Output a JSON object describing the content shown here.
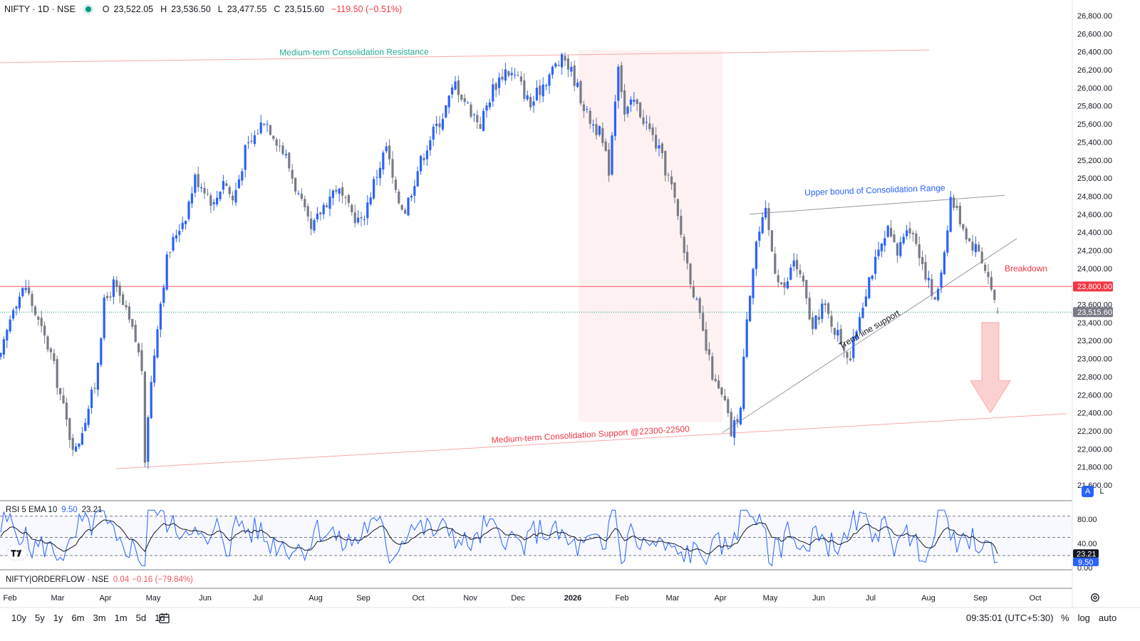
{
  "header": {
    "symbol": "NIFTY · 1D · NSE",
    "open_label": "O",
    "open": "23,522.05",
    "high_label": "H",
    "high": "23,536.50",
    "low_label": "L",
    "low": "23,477.55",
    "close_label": "C",
    "close": "23,515.60",
    "change": "−119.50 (−0.51%)",
    "status_color": "#089981"
  },
  "price_axis": {
    "ticks": [
      "26,800.00",
      "26,600.00",
      "26,400.00",
      "26,200.00",
      "26,000.00",
      "25,800.00",
      "25,600.00",
      "25,400.00",
      "25,200.00",
      "25,000.00",
      "24,800.00",
      "24,600.00",
      "24,400.00",
      "24,200.00",
      "24,000.00",
      "23,800.00",
      "23,600.00",
      "23,400.00",
      "23,200.00",
      "23,000.00",
      "22,800.00",
      "22,600.00",
      "22,400.00",
      "22,200.00",
      "22,000.00",
      "21,800.00",
      "21,600.00"
    ],
    "tick_values": [
      26800,
      26600,
      26400,
      26200,
      26000,
      25800,
      25600,
      25400,
      25200,
      25000,
      24800,
      24600,
      24400,
      24200,
      24000,
      23800,
      23600,
      23400,
      23200,
      23000,
      22800,
      22600,
      22400,
      22200,
      22000,
      21800,
      21600
    ],
    "ylim": [
      21450,
      26950
    ],
    "last_price_label": "23,515.60",
    "level_label": "23,800.00",
    "scale_mode_a": "A",
    "scale_mode_l": "L"
  },
  "chart_data": {
    "type": "candlestick",
    "ylim": [
      21450,
      26950
    ],
    "last_price": 23515.6,
    "up_color": "#2962ff",
    "down_color": "#787b86",
    "price_path": [
      [
        0,
        23000
      ],
      [
        4,
        23600
      ],
      [
        8,
        23800
      ],
      [
        12,
        23400
      ],
      [
        16,
        23050
      ],
      [
        19,
        22600
      ],
      [
        22,
        22150
      ],
      [
        24,
        21980
      ],
      [
        27,
        22350
      ],
      [
        30,
        22700
      ],
      [
        33,
        23600
      ],
      [
        36,
        23820
      ],
      [
        40,
        23500
      ],
      [
        43,
        23200
      ],
      [
        45,
        22900
      ],
      [
        46,
        21770
      ],
      [
        47,
        22400
      ],
      [
        50,
        23400
      ],
      [
        53,
        24100
      ],
      [
        56,
        24400
      ],
      [
        59,
        24600
      ],
      [
        62,
        25000
      ],
      [
        65,
        24900
      ],
      [
        68,
        24700
      ],
      [
        71,
        25000
      ],
      [
        74,
        24750
      ],
      [
        76,
        25000
      ],
      [
        78,
        25300
      ],
      [
        80,
        25400
      ],
      [
        84,
        25660
      ],
      [
        87,
        25500
      ],
      [
        91,
        25230
      ],
      [
        95,
        24800
      ],
      [
        99,
        24400
      ],
      [
        103,
        24700
      ],
      [
        107,
        24900
      ],
      [
        111,
        24650
      ],
      [
        115,
        24500
      ],
      [
        119,
        24950
      ],
      [
        123,
        25350
      ],
      [
        126,
        24800
      ],
      [
        129,
        24650
      ],
      [
        133,
        25100
      ],
      [
        137,
        25450
      ],
      [
        141,
        25700
      ],
      [
        145,
        26050
      ],
      [
        149,
        25800
      ],
      [
        153,
        25600
      ],
      [
        157,
        26000
      ],
      [
        161,
        26200
      ],
      [
        165,
        26100
      ],
      [
        169,
        25800
      ],
      [
        173,
        26050
      ],
      [
        177,
        26250
      ],
      [
        180,
        26320
      ],
      [
        183,
        26100
      ],
      [
        187,
        25700
      ],
      [
        191,
        25500
      ],
      [
        194,
        25100
      ],
      [
        197,
        26300
      ],
      [
        199,
        25700
      ],
      [
        202,
        25850
      ],
      [
        206,
        25600
      ],
      [
        210,
        25300
      ],
      [
        214,
        24900
      ],
      [
        218,
        24200
      ],
      [
        222,
        23600
      ],
      [
        225,
        23100
      ],
      [
        228,
        22700
      ],
      [
        231,
        22500
      ],
      [
        233,
        22170
      ],
      [
        236,
        22450
      ],
      [
        238,
        23500
      ],
      [
        241,
        24300
      ],
      [
        244,
        24600
      ],
      [
        247,
        24000
      ],
      [
        250,
        23750
      ],
      [
        253,
        24100
      ],
      [
        256,
        23800
      ],
      [
        259,
        23300
      ],
      [
        262,
        23600
      ],
      [
        265,
        23400
      ],
      [
        268,
        23200
      ],
      [
        271,
        23000
      ],
      [
        274,
        23500
      ],
      [
        277,
        23900
      ],
      [
        280,
        24150
      ],
      [
        283,
        24400
      ],
      [
        286,
        24150
      ],
      [
        289,
        24500
      ],
      [
        292,
        24300
      ],
      [
        295,
        23950
      ],
      [
        298,
        23600
      ],
      [
        301,
        24200
      ],
      [
        303,
        24780
      ],
      [
        306,
        24550
      ],
      [
        309,
        24300
      ],
      [
        312,
        24200
      ],
      [
        315,
        23900
      ],
      [
        318,
        23515.6
      ]
    ],
    "annotations": [
      "Medium-term Consolidation Resistance",
      "Medium-term Consolidation Support @22300-22500",
      "Upper bound of Consolidation Range",
      "Trend line support",
      "Breakdown"
    ],
    "levels": {
      "resistance": [
        26280,
        26420
      ],
      "support": [
        21780,
        22390
      ],
      "upper_bound": [
        24600,
        24810
      ],
      "trend_line": [
        22180,
        24330
      ],
      "breakdown": 23800,
      "target": 22400
    },
    "x_axis": [
      "Feb",
      "Mar",
      "Apr",
      "May",
      "Jun",
      "Jul",
      "Aug",
      "Sep",
      "Oct",
      "Nov",
      "Dec",
      "2026",
      "Feb",
      "Mar",
      "Apr",
      "May",
      "Jun",
      "Jul",
      "Aug",
      "Sep",
      "Oct"
    ]
  },
  "rsi": {
    "label": "RSI 5 EMA 10",
    "rsi_value": "9.50",
    "ema_value": "23.21",
    "ticks": [
      "80.00",
      "40.00",
      "0.00"
    ],
    "levels": [
      85,
      50,
      20
    ],
    "rsi_color": "#2962ff",
    "ema_color": "#131722"
  },
  "orderflow": {
    "label": "NIFTY|ORDERFLOW · NSE",
    "value": "0.04",
    "change": "−0.16 (−79.84%)"
  },
  "bottom": {
    "ranges": [
      "10y",
      "5y",
      "1y",
      "6m",
      "3m",
      "1m",
      "5d",
      "1d"
    ],
    "time": "09:35:01 (UTC+5:30)",
    "percent": "%",
    "log": "log",
    "auto": "auto"
  }
}
